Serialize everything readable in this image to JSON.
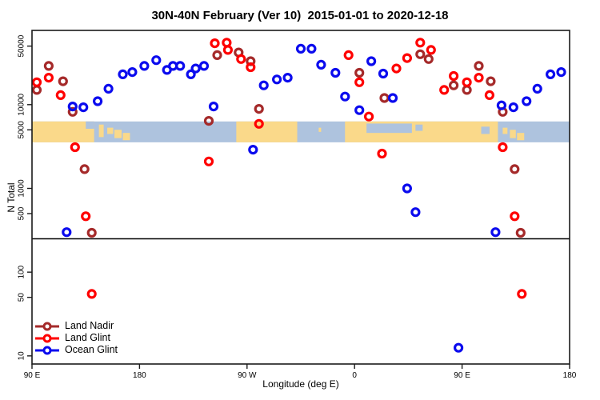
{
  "title": "30N-40N February (Ver 10)  2015-01-01 to 2020-12-18",
  "chart_data": {
    "type": "scatter",
    "title": "30N-40N February (Ver 10)  2015-01-01 to 2020-12-18",
    "x_axis": {
      "label": "Longitude (deg E)",
      "note": "axis spans 450 degrees starting at 90E, wrapping east through 180, 90W, 0, 90E to 180",
      "range_deg": [
        0,
        450
      ],
      "ticks": [
        {
          "pos": 0,
          "label": "90 E"
        },
        {
          "pos": 90,
          "label": "180"
        },
        {
          "pos": 180,
          "label": "90 W"
        },
        {
          "pos": 270,
          "label": "0"
        },
        {
          "pos": 360,
          "label": "90 E"
        },
        {
          "pos": 450,
          "label": "180"
        }
      ]
    },
    "y_axis": {
      "label": "N Total",
      "scale": "log",
      "range": [
        8,
        77000
      ],
      "ticks": [
        {
          "value": 50000,
          "label": "50000"
        },
        {
          "value": 10000,
          "label": "10000"
        },
        {
          "value": 5000,
          "label": "5000"
        },
        {
          "value": 1000,
          "label": "1000"
        },
        {
          "value": 500,
          "label": "500"
        },
        {
          "value": 100,
          "label": "100"
        },
        {
          "value": 50,
          "label": "50"
        },
        {
          "value": 10,
          "label": "10"
        }
      ]
    },
    "threshold_line_n": 250,
    "grid": false,
    "legend_position": "bottom-left",
    "map_band": {
      "n_top": 6300,
      "n_bottom": 3550,
      "ocean_color": "#AEC3DE",
      "land_color": "#FAD98A",
      "land_segments": [
        {
          "d0": 0,
          "d1": 52
        },
        {
          "d0": 171,
          "d1": 222
        },
        {
          "d0": 262,
          "d1": 390
        }
      ],
      "islands": [
        {
          "d0": 56,
          "d1": 60,
          "top": 0.15,
          "bottom": 0.75
        },
        {
          "d0": 63,
          "d1": 68,
          "top": 0.3,
          "bottom": 0.6
        },
        {
          "d0": 69,
          "d1": 75,
          "top": 0.4,
          "bottom": 0.8
        },
        {
          "d0": 76,
          "d1": 82,
          "top": 0.55,
          "bottom": 0.9
        },
        {
          "d0": 240,
          "d1": 242,
          "top": 0.3,
          "bottom": 0.5
        },
        {
          "d0": 394,
          "d1": 398,
          "top": 0.3,
          "bottom": 0.6
        },
        {
          "d0": 400,
          "d1": 405,
          "top": 0.4,
          "bottom": 0.8
        },
        {
          "d0": 406,
          "d1": 412,
          "top": 0.55,
          "bottom": 0.9
        }
      ],
      "sea_patches": [
        {
          "d0": 45,
          "d1": 52,
          "top": 0.0,
          "bottom": 0.35
        },
        {
          "d0": 280,
          "d1": 318,
          "top": 0.1,
          "bottom": 0.55
        },
        {
          "d0": 321,
          "d1": 327,
          "top": 0.15,
          "bottom": 0.45
        },
        {
          "d0": 376,
          "d1": 383,
          "top": 0.25,
          "bottom": 0.6
        }
      ]
    },
    "series": [
      {
        "name": "Land Nadir",
        "color": "#A52A2A",
        "points": [
          [
            4,
            15000
          ],
          [
            14,
            29000
          ],
          [
            26,
            19000
          ],
          [
            34,
            8200
          ],
          [
            44,
            1700
          ],
          [
            50,
            295
          ],
          [
            148,
            6400
          ],
          [
            155,
            39000
          ],
          [
            173,
            42000
          ],
          [
            183,
            33000
          ],
          [
            190,
            8900
          ],
          [
            274,
            24000
          ],
          [
            295,
            12000
          ],
          [
            325,
            40000
          ],
          [
            332,
            35000
          ],
          [
            353,
            17000
          ],
          [
            364,
            15000
          ],
          [
            374,
            29000
          ],
          [
            384,
            19000
          ],
          [
            394,
            8200
          ],
          [
            404,
            1700
          ],
          [
            409,
            295
          ]
        ]
      },
      {
        "name": "Land Glint",
        "color": "#FF0000",
        "points": [
          [
            4,
            18500
          ],
          [
            14,
            21000
          ],
          [
            24,
            13000
          ],
          [
            36,
            3100
          ],
          [
            45,
            465
          ],
          [
            50,
            55
          ],
          [
            148,
            2100
          ],
          [
            153,
            54000
          ],
          [
            163,
            55000
          ],
          [
            164,
            45000
          ],
          [
            175,
            35000
          ],
          [
            183,
            28000
          ],
          [
            190,
            5900
          ],
          [
            265,
            39000
          ],
          [
            274,
            18500
          ],
          [
            282,
            7200
          ],
          [
            293,
            2600
          ],
          [
            305,
            27000
          ],
          [
            314,
            36000
          ],
          [
            325,
            55000
          ],
          [
            334,
            45000
          ],
          [
            345,
            15000
          ],
          [
            353,
            22000
          ],
          [
            364,
            18500
          ],
          [
            374,
            21000
          ],
          [
            383,
            13000
          ],
          [
            394,
            3100
          ],
          [
            404,
            465
          ],
          [
            410,
            55
          ]
        ]
      },
      {
        "name": "Ocean Glint",
        "color": "#0B0BEE",
        "points": [
          [
            29,
            300
          ],
          [
            34,
            9500
          ],
          [
            43,
            9300
          ],
          [
            55,
            11000
          ],
          [
            64,
            15500
          ],
          [
            76,
            23000
          ],
          [
            84,
            24500
          ],
          [
            94,
            29000
          ],
          [
            104,
            34000
          ],
          [
            113,
            26000
          ],
          [
            118,
            29000
          ],
          [
            124,
            29000
          ],
          [
            133,
            23000
          ],
          [
            137,
            27000
          ],
          [
            144,
            29000
          ],
          [
            152,
            9500
          ],
          [
            185,
            2900
          ],
          [
            194,
            17000
          ],
          [
            205,
            20000
          ],
          [
            214,
            21000
          ],
          [
            225,
            46500
          ],
          [
            234,
            46500
          ],
          [
            242,
            30000
          ],
          [
            254,
            24000
          ],
          [
            262,
            12500
          ],
          [
            274,
            8600
          ],
          [
            284,
            33000
          ],
          [
            294,
            23500
          ],
          [
            302,
            12000
          ],
          [
            314,
            1000
          ],
          [
            321,
            520
          ],
          [
            357,
            12.5
          ],
          [
            388,
            300
          ],
          [
            393,
            9800
          ],
          [
            403,
            9300
          ],
          [
            414,
            11000
          ],
          [
            423,
            15500
          ],
          [
            434,
            23000
          ],
          [
            443,
            24500
          ]
        ]
      }
    ]
  }
}
